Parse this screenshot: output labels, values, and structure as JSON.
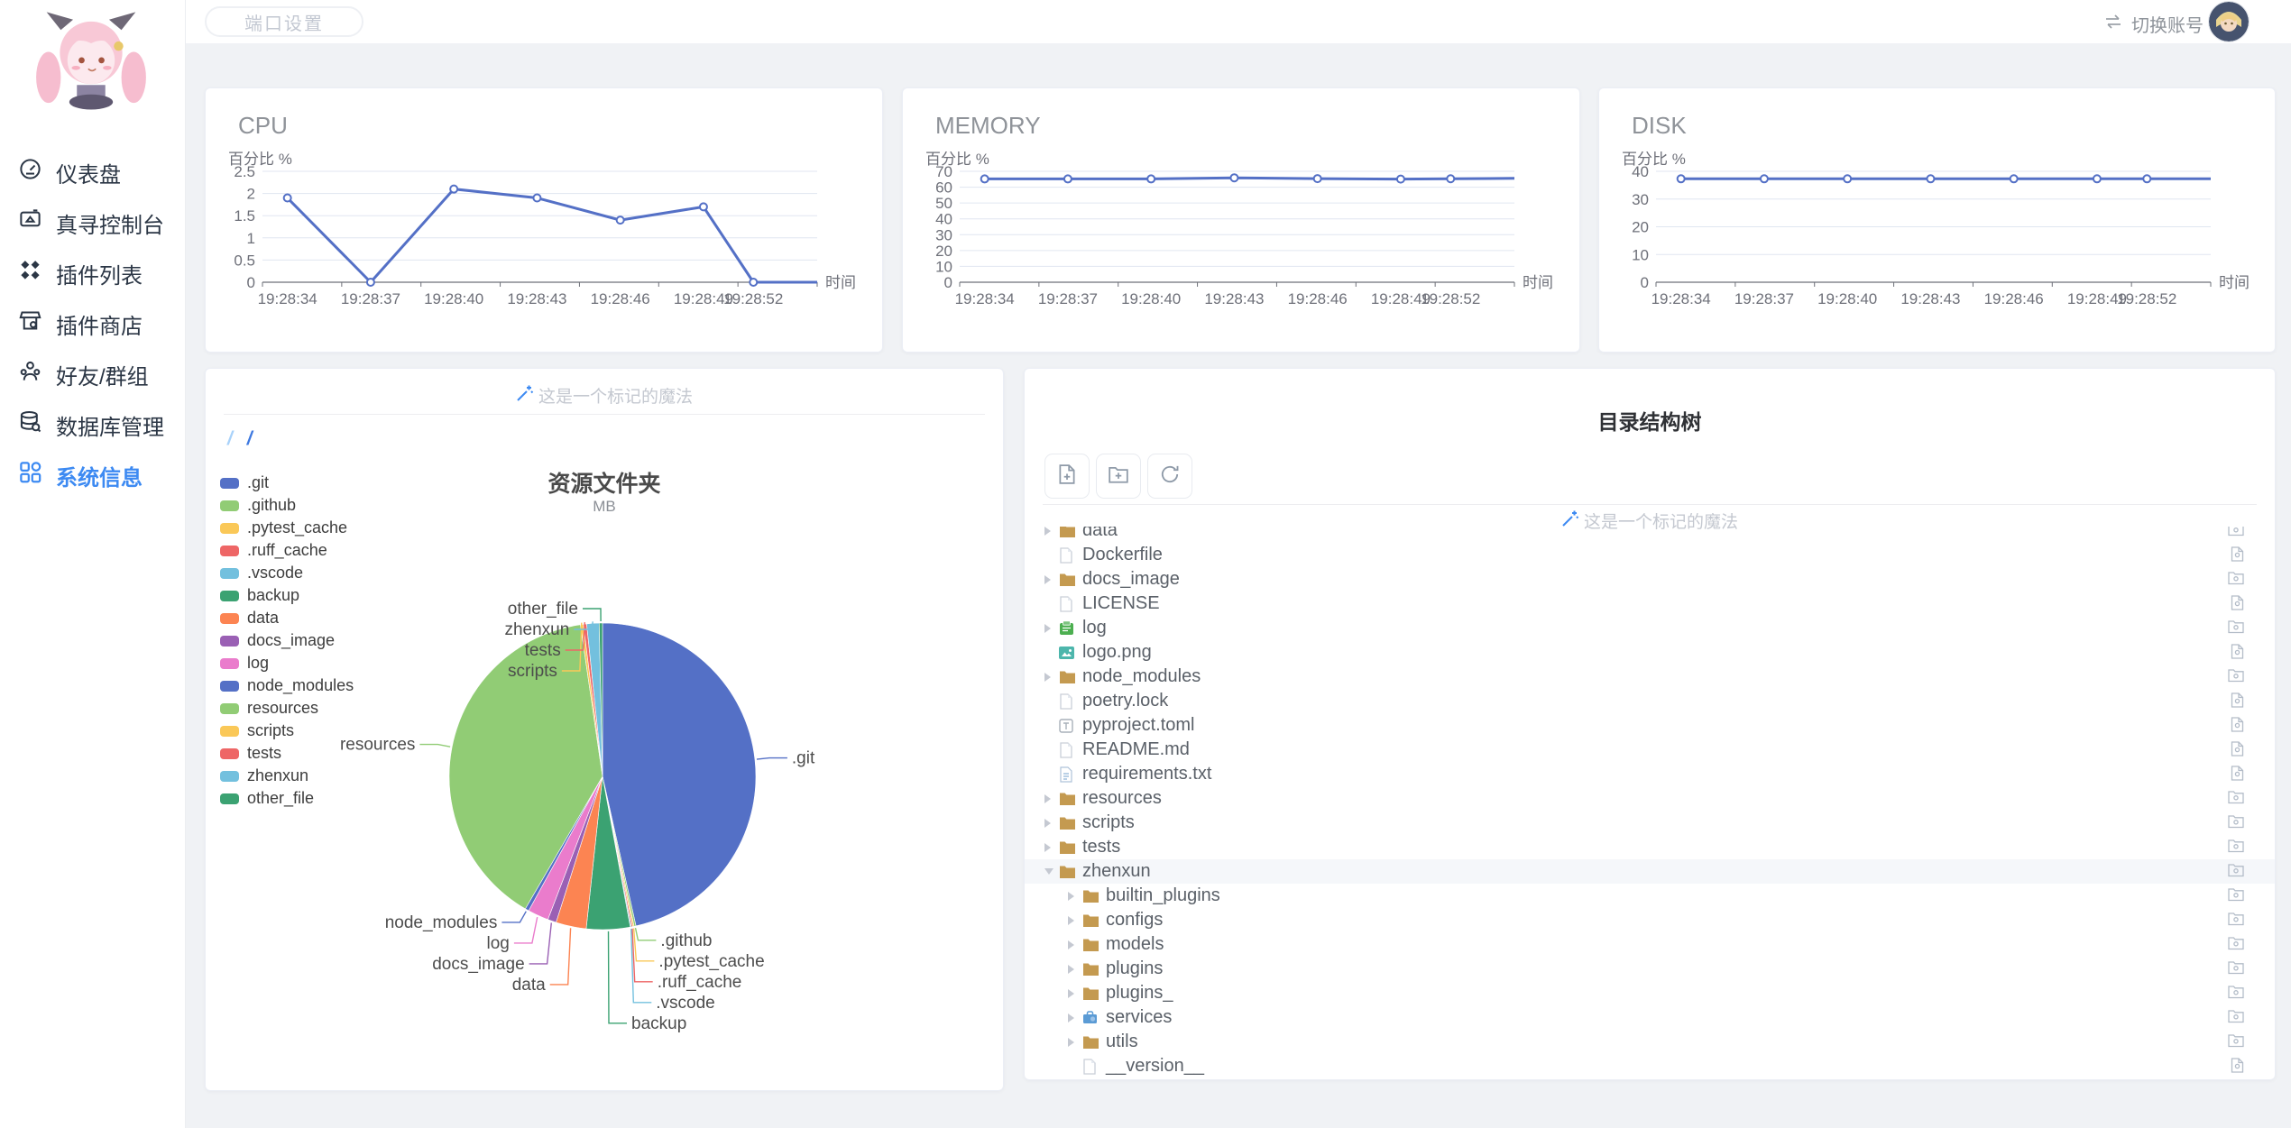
{
  "topbar": {
    "port_button": "端口设置",
    "switch_account": "切换账号"
  },
  "sidebar": {
    "items": [
      {
        "label": "仪表盘"
      },
      {
        "label": "真寻控制台"
      },
      {
        "label": "插件列表"
      },
      {
        "label": "插件商店"
      },
      {
        "label": "好友/群组"
      },
      {
        "label": "数据库管理"
      },
      {
        "label": "系统信息",
        "active": true
      }
    ],
    "active_color": "#3d8af2"
  },
  "chart_data": [
    {
      "type": "line",
      "title": "CPU",
      "ylabel": "百分比 %",
      "xlabel": "时间",
      "categories": [
        "19:28:34",
        "19:28:37",
        "19:28:40",
        "19:28:43",
        "19:28:46",
        "19:28:49",
        "19:28:52"
      ],
      "values": [
        1.9,
        0,
        2.1,
        1.9,
        1.4,
        1.7,
        0
      ],
      "yticks": [
        0,
        0.5,
        1,
        1.5,
        2,
        2.5
      ],
      "ylim": [
        0,
        2.5
      ],
      "line_color": "#5470C6",
      "grid": true,
      "legend": "none"
    },
    {
      "type": "line",
      "title": "MEMORY",
      "ylabel": "百分比 %",
      "xlabel": "时间",
      "categories": [
        "19:28:34",
        "19:28:37",
        "19:28:40",
        "19:28:43",
        "19:28:46",
        "19:28:49",
        "19:28:52"
      ],
      "values": [
        65.2,
        65.2,
        65.2,
        65.9,
        65.4,
        65.1,
        65.3
      ],
      "yticks": [
        0,
        10,
        20,
        30,
        40,
        50,
        60,
        70
      ],
      "ylim": [
        0,
        70
      ],
      "line_color": "#5470C6",
      "grid": true,
      "legend": "none"
    },
    {
      "type": "line",
      "title": "DISK",
      "ylabel": "百分比 %",
      "xlabel": "时间",
      "categories": [
        "19:28:34",
        "19:28:37",
        "19:28:40",
        "19:28:43",
        "19:28:46",
        "19:28:49",
        "19:28:52"
      ],
      "values": [
        37.3,
        37.3,
        37.3,
        37.3,
        37.3,
        37.3,
        37.3
      ],
      "yticks": [
        0,
        10,
        20,
        30,
        40
      ],
      "ylim": [
        0,
        40
      ],
      "line_color": "#5470C6",
      "grid": true,
      "legend": "none"
    },
    {
      "type": "pie",
      "title": "资源文件夹",
      "subtitle": "MB",
      "values_estimated": true,
      "legend_position": "left",
      "items": [
        {
          "name": ".git",
          "value": 46.5,
          "color": "#5470C6"
        },
        {
          "name": ".github",
          "value": 0.2,
          "color": "#91CC75"
        },
        {
          "name": ".pytest_cache",
          "value": 0.15,
          "color": "#FAC858"
        },
        {
          "name": ".ruff_cache",
          "value": 0.15,
          "color": "#EE6666"
        },
        {
          "name": ".vscode",
          "value": 0.1,
          "color": "#73C0DE"
        },
        {
          "name": "backup",
          "value": 4.6,
          "color": "#3BA272"
        },
        {
          "name": "data",
          "value": 3.2,
          "color": "#FC8452"
        },
        {
          "name": "docs_image",
          "value": 0.9,
          "color": "#9A60B4"
        },
        {
          "name": "log",
          "value": 2.2,
          "color": "#EA7CCC"
        },
        {
          "name": "node_modules",
          "value": 0.4,
          "color": "#5470C6"
        },
        {
          "name": "resources",
          "value": 39.3,
          "color": "#91CC75"
        },
        {
          "name": "scripts",
          "value": 0.3,
          "color": "#FAC858"
        },
        {
          "name": "tests",
          "value": 0.35,
          "color": "#EE6666"
        },
        {
          "name": "zhenxun",
          "value": 1.3,
          "color": "#73C0DE"
        },
        {
          "name": "other_file",
          "value": 0.35,
          "color": "#3BA272"
        }
      ]
    }
  ],
  "resource_card": {
    "magic_label": "这是一个标记的魔法",
    "breadcrumb": [
      "/",
      "/"
    ]
  },
  "tree_card": {
    "title": "目录结构树",
    "magic_label": "这是一个标记的魔法",
    "toolbar": [
      "new-file-button",
      "new-folder-button",
      "refresh-button"
    ],
    "rows": [
      {
        "name": "data",
        "icon": "folder",
        "caret": "right",
        "depth": 0,
        "action": "folder-download"
      },
      {
        "name": "Dockerfile",
        "icon": "file",
        "caret": "none",
        "depth": 0,
        "action": "file-download"
      },
      {
        "name": "docs_image",
        "icon": "folder",
        "caret": "right",
        "depth": 0,
        "action": "folder-download"
      },
      {
        "name": "LICENSE",
        "icon": "file",
        "caret": "none",
        "depth": 0,
        "action": "file-download"
      },
      {
        "name": "log",
        "icon": "log",
        "caret": "right",
        "depth": 0,
        "action": "folder-download"
      },
      {
        "name": "logo.png",
        "icon": "image",
        "caret": "none",
        "depth": 0,
        "action": "file-download"
      },
      {
        "name": "node_modules",
        "icon": "folder",
        "caret": "right",
        "depth": 0,
        "action": "folder-download"
      },
      {
        "name": "poetry.lock",
        "icon": "file",
        "caret": "none",
        "depth": 0,
        "action": "file-download"
      },
      {
        "name": "pyproject.toml",
        "icon": "toml",
        "caret": "none",
        "depth": 0,
        "action": "file-download"
      },
      {
        "name": "README.md",
        "icon": "file",
        "caret": "none",
        "depth": 0,
        "action": "file-download"
      },
      {
        "name": "requirements.txt",
        "icon": "txt",
        "caret": "none",
        "depth": 0,
        "action": "file-download"
      },
      {
        "name": "resources",
        "icon": "folder",
        "caret": "right",
        "depth": 0,
        "action": "folder-download"
      },
      {
        "name": "scripts",
        "icon": "folder",
        "caret": "right",
        "depth": 0,
        "action": "folder-download"
      },
      {
        "name": "tests",
        "icon": "folder",
        "caret": "right",
        "depth": 0,
        "action": "folder-download"
      },
      {
        "name": "zhenxun",
        "icon": "folder",
        "caret": "down",
        "depth": 0,
        "action": "folder-download",
        "selected": true
      },
      {
        "name": "builtin_plugins",
        "icon": "folder",
        "caret": "right",
        "depth": 1,
        "action": "folder-download"
      },
      {
        "name": "configs",
        "icon": "folder",
        "caret": "right",
        "depth": 1,
        "action": "folder-download"
      },
      {
        "name": "models",
        "icon": "folder",
        "caret": "right",
        "depth": 1,
        "action": "folder-download"
      },
      {
        "name": "plugins",
        "icon": "folder",
        "caret": "right",
        "depth": 1,
        "action": "folder-download"
      },
      {
        "name": "plugins_",
        "icon": "folder",
        "caret": "right",
        "depth": 1,
        "action": "folder-download"
      },
      {
        "name": "services",
        "icon": "services",
        "caret": "right",
        "depth": 1,
        "action": "folder-download"
      },
      {
        "name": "utils",
        "icon": "folder",
        "caret": "right",
        "depth": 1,
        "action": "folder-download"
      },
      {
        "name": "__version__",
        "icon": "file",
        "caret": "none",
        "depth": 1,
        "action": "file-download"
      }
    ]
  }
}
